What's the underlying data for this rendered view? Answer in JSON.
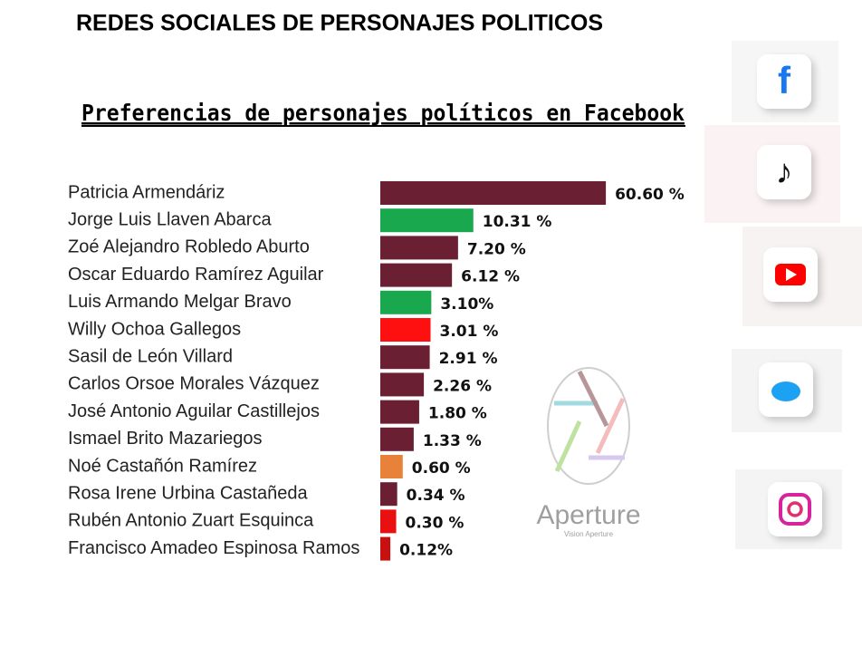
{
  "chart_data": {
    "type": "bar",
    "orientation": "horizontal",
    "title": "REDES SOCIALES  DE PERSONAJES POLITICOS",
    "subtitle": "Preferencias  de personajes políticos en Facebook",
    "categories": [
      "Patricia Armendáriz",
      "Jorge Luis Llaven Abarca",
      "Zoé Alejandro Robledo Aburto",
      "Oscar Eduardo Ramírez Aguilar",
      "Luis Armando Melgar Bravo",
      "Willy Ochoa Gallegos",
      "Sasil de León Villard",
      "Carlos Orsoe Morales Vázquez",
      "José Antonio Aguilar Castillejos",
      "Ismael Brito Mazariegos",
      "Noé Castañón Ramírez",
      "Rosa Irene Urbina Castañeda",
      "Rubén Antonio Zuart Esquinca",
      "Francisco Amadeo Espinosa Ramos"
    ],
    "values": [
      60.6,
      10.31,
      7.2,
      6.12,
      3.1,
      3.01,
      2.91,
      2.26,
      1.8,
      1.33,
      0.6,
      0.34,
      0.3,
      0.12
    ],
    "value_labels": [
      "60.60  %",
      "10.31 %",
      "7.20 %",
      "6.12 %",
      "3.10%",
      "3.01 %",
      "2.91 %",
      "2.26 %",
      "1.80 %",
      "1.33  %",
      "0.60 %",
      "0.34 %",
      "0.30 %",
      "0.12%"
    ],
    "colors": [
      "#6b1f33",
      "#1aa84e",
      "#6b1f33",
      "#6b1f33",
      "#1aa84e",
      "#ff1010",
      "#6b1f33",
      "#6b1f33",
      "#6b1f33",
      "#6b1f33",
      "#e8823a",
      "#6b1f33",
      "#e81010",
      "#c81010"
    ]
  },
  "watermark": {
    "text": "Aperture",
    "subtext": "Vision Aperture"
  }
}
